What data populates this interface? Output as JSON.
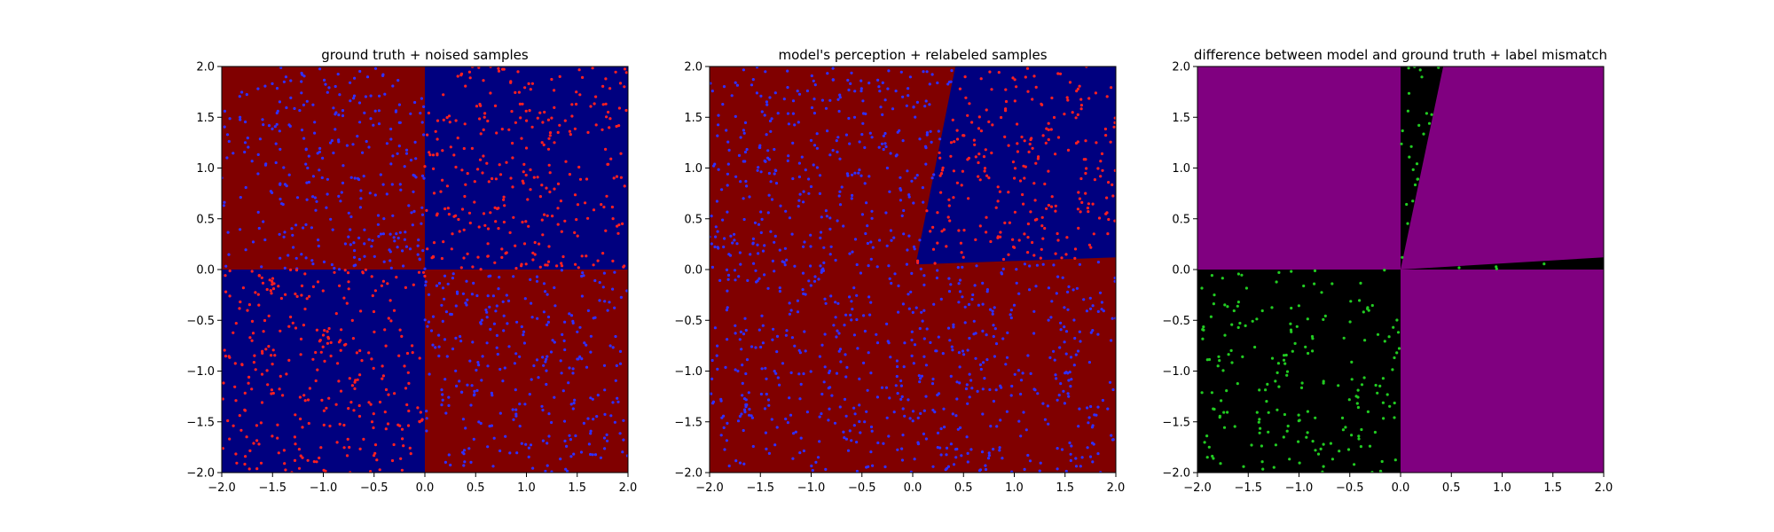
{
  "chart_data": [
    {
      "type": "scatter",
      "title": "ground truth + noised samples",
      "xlabel": "",
      "ylabel": "",
      "xlim": [
        -2.0,
        2.0
      ],
      "ylim": [
        -2.0,
        2.0
      ],
      "xticks": [
        "−2.0",
        "−1.5",
        "−1.0",
        "−0.5",
        "0.0",
        "0.5",
        "1.0",
        "1.5",
        "2.0"
      ],
      "yticks": [
        "−2.0",
        "−1.5",
        "−1.0",
        "−0.5",
        "0.0",
        "0.5",
        "1.0",
        "1.5",
        "2.0"
      ],
      "grid": false,
      "background_regions": [
        {
          "polygon": [
            [
              -2,
              0
            ],
            [
              0,
              0
            ],
            [
              0,
              2
            ],
            [
              -2,
              2
            ]
          ],
          "color": "#800000"
        },
        {
          "polygon": [
            [
              0,
              0
            ],
            [
              2,
              0
            ],
            [
              2,
              2
            ],
            [
              0,
              2
            ]
          ],
          "color": "#00007f"
        },
        {
          "polygon": [
            [
              -2,
              -2
            ],
            [
              0,
              -2
            ],
            [
              0,
              0
            ],
            [
              -2,
              0
            ]
          ],
          "color": "#00007f"
        },
        {
          "polygon": [
            [
              0,
              -2
            ],
            [
              2,
              -2
            ],
            [
              2,
              0
            ],
            [
              0,
              0
            ]
          ],
          "color": "#800000"
        }
      ],
      "point_count_per_quadrant": {
        "top_left": 300,
        "top_right": 300,
        "bottom_left": 300,
        "bottom_right": 300
      },
      "point_colors": {
        "top_left": "#3030ff",
        "top_right": "#ff2020",
        "bottom_left": "#ff2020",
        "bottom_right": "#3030ff"
      }
    },
    {
      "type": "scatter",
      "title": "model's perception + relabeled samples",
      "xlabel": "",
      "ylabel": "",
      "xlim": [
        -2.0,
        2.0
      ],
      "ylim": [
        -2.0,
        2.0
      ],
      "xticks": [
        "−2.0",
        "−1.5",
        "−1.0",
        "−0.5",
        "0.0",
        "0.5",
        "1.0",
        "1.5",
        "2.0"
      ],
      "yticks": [
        "−2.0",
        "−1.5",
        "−1.0",
        "−0.5",
        "0.0",
        "0.5",
        "1.0",
        "1.5",
        "2.0"
      ],
      "grid": false,
      "background_regions": [
        {
          "polygon": [
            [
              -2,
              -2
            ],
            [
              2,
              -2
            ],
            [
              2,
              2
            ],
            [
              -2,
              2
            ]
          ],
          "color": "#800000"
        },
        {
          "polygon": [
            [
              0.03,
              0.05
            ],
            [
              2,
              0.12
            ],
            [
              2,
              2
            ],
            [
              0.42,
              2
            ]
          ],
          "color": "#00007f"
        }
      ],
      "point_count": 1200,
      "point_colors": {
        "inside_blue_region": "#ff2020",
        "elsewhere": "#3030ff"
      }
    },
    {
      "type": "scatter",
      "title": "difference between model and ground truth + label mismatch",
      "xlabel": "",
      "ylabel": "",
      "xlim": [
        -2.0,
        2.0
      ],
      "ylim": [
        -2.0,
        2.0
      ],
      "xticks": [
        "−2.0",
        "−1.5",
        "−1.0",
        "−0.5",
        "0.0",
        "0.5",
        "1.0",
        "1.5",
        "2.0"
      ],
      "yticks": [
        "−2.0",
        "−1.5",
        "−1.0",
        "−0.5",
        "0.0",
        "0.5",
        "1.0",
        "1.5",
        "2.0"
      ],
      "grid": false,
      "background_regions": [
        {
          "polygon": [
            [
              -2,
              -2
            ],
            [
              2,
              -2
            ],
            [
              2,
              2
            ],
            [
              -2,
              2
            ]
          ],
          "color": "#800080"
        },
        {
          "polygon": [
            [
              -2,
              -2
            ],
            [
              0,
              -2
            ],
            [
              0,
              0
            ],
            [
              -2,
              0
            ]
          ],
          "color": "#000000"
        },
        {
          "polygon": [
            [
              0,
              0
            ],
            [
              0.42,
              2
            ],
            [
              0,
              2
            ]
          ],
          "color": "#000000"
        },
        {
          "polygon": [
            [
              0,
              0
            ],
            [
              2,
              0.12
            ],
            [
              2,
              0
            ]
          ],
          "color": "#000000"
        }
      ],
      "point_count": 230,
      "point_color": "#22cc22"
    }
  ]
}
